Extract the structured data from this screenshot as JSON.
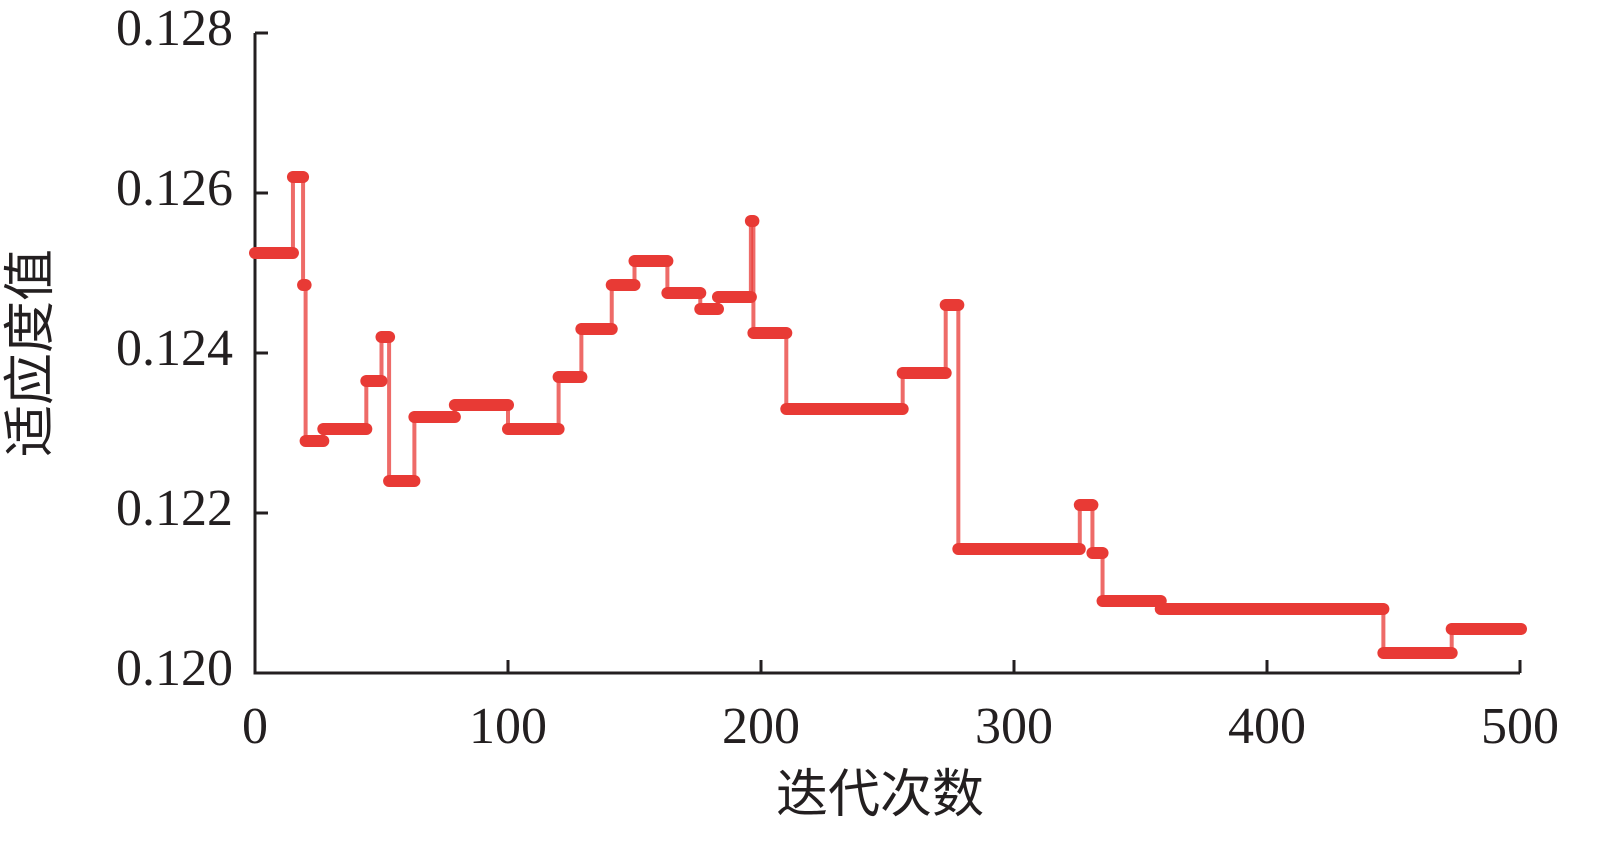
{
  "chart_data": {
    "type": "step",
    "x_label": "迭代次数",
    "y_label": "适应度值",
    "color": "#e83a35",
    "xlim": [
      0,
      500
    ],
    "xticks": [
      0,
      100,
      200,
      300,
      400,
      500
    ],
    "ylim": [
      0.12,
      0.128
    ],
    "yticks": [
      {
        "value": 0.12,
        "label": "0.120"
      },
      0.122,
      0.124,
      0.126,
      0.128
    ],
    "x": [
      0,
      15,
      19,
      20,
      27,
      44,
      50,
      53,
      63,
      79,
      100,
      120,
      129,
      141,
      150,
      163,
      176,
      183,
      196,
      197,
      210,
      256,
      273,
      278,
      326,
      331,
      335,
      358,
      446,
      473,
      500
    ],
    "values": [
      0.12525,
      0.1262,
      0.12485,
      0.1229,
      0.12305,
      0.12365,
      0.1242,
      0.1224,
      0.1232,
      0.12335,
      0.12305,
      0.1237,
      0.1243,
      0.12485,
      0.12515,
      0.12475,
      0.12455,
      0.1247,
      0.12565,
      0.12425,
      0.1233,
      0.12375,
      0.1246,
      0.12155,
      0.1221,
      0.1215,
      0.1209,
      0.1208,
      0.12025,
      0.12055,
      0.12055
    ]
  }
}
